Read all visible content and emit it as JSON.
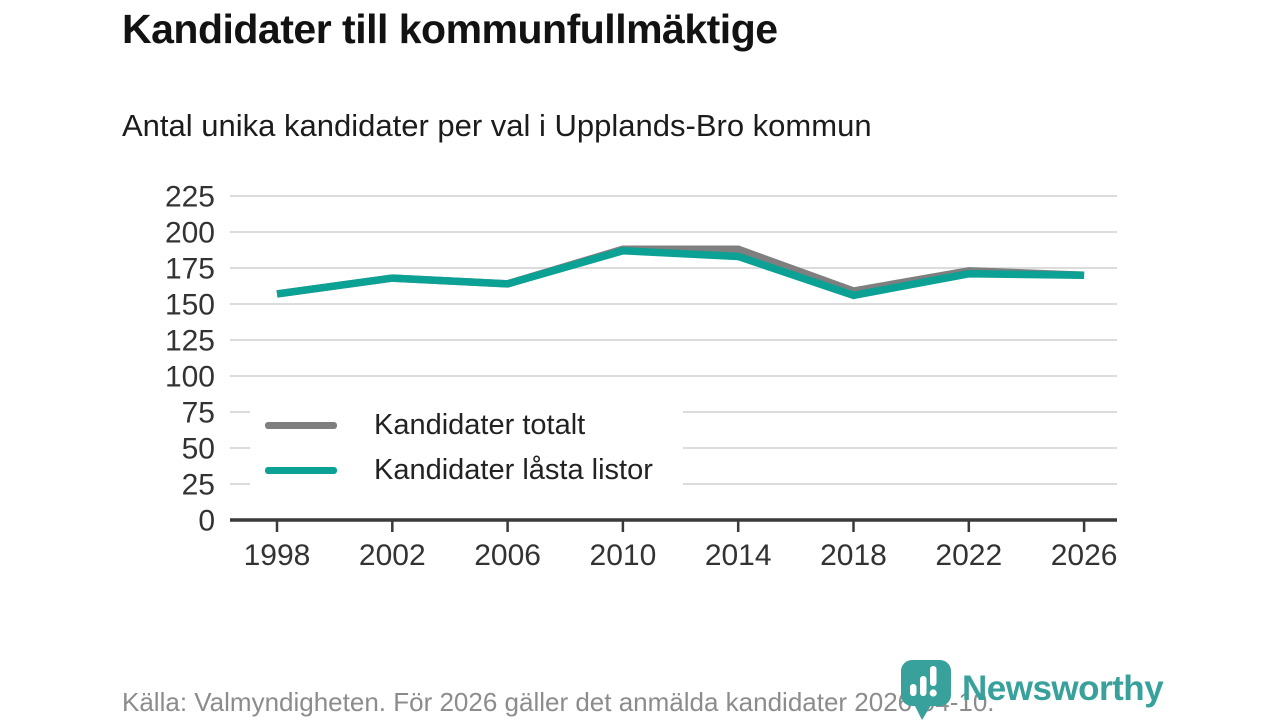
{
  "header": {
    "title": "Kandidater till kommunfullmäktige",
    "subtitle": "Antal unika kandidater per val i Upplands-Bro kommun"
  },
  "chart_data": {
    "type": "line",
    "x": [
      1998,
      2002,
      2006,
      2010,
      2014,
      2018,
      2022,
      2026
    ],
    "series": [
      {
        "name": "Kandidater totalt",
        "color": "#7f7f7f",
        "values": [
          157,
          168,
          164,
          188,
          188,
          159,
          173,
          170
        ]
      },
      {
        "name": "Kandidater låsta listor",
        "color": "#0ba195",
        "values": [
          157,
          168,
          164,
          187,
          183,
          156,
          171,
          170
        ]
      }
    ],
    "title": "Kandidater till kommunfullmäktige",
    "subtitle": "Antal unika kandidater per val i Upplands-Bro kommun",
    "xlabel": "",
    "ylabel": "",
    "ylim": [
      0,
      225
    ],
    "ytick_step": 25,
    "xticks": [
      "1998",
      "2002",
      "2006",
      "2010",
      "2014",
      "2018",
      "2022",
      "2026"
    ],
    "grid": true,
    "legend_position": "inside lower-left",
    "grid_color": "#dcdcdc",
    "axis_color": "#3a3a3a",
    "tick_label_color": "#333333"
  },
  "footer": {
    "source": "Källa: Valmyndigheten. För 2026 gäller det anmälda kandidater 2026-04-10."
  },
  "logo": {
    "wordmark": "Newsworthy",
    "color": "#38a19b",
    "mark": "speech-bubble-bar-chart-exclamation-icon"
  }
}
